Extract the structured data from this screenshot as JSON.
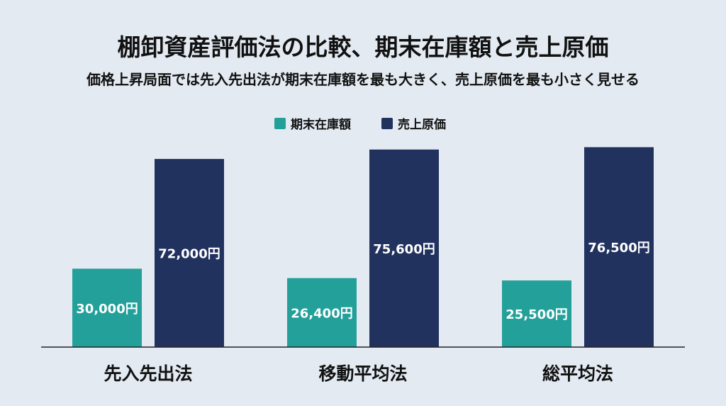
{
  "chart_data": {
    "type": "bar",
    "title": "棚卸資産評価法の比較、期末在庫額と売上原価",
    "subtitle": "価格上昇局面では先入先出法が期末在庫額を最も大きく、売上原価を最も小さく見せる",
    "categories": [
      "先入先出法",
      "移動平均法",
      "総平均法"
    ],
    "series": [
      {
        "name": "期末在庫額",
        "values": [
          30000,
          26400,
          25500
        ],
        "labels": [
          "30,000円",
          "26,400円",
          "25,500円"
        ],
        "color": "#24a09a"
      },
      {
        "name": "売上原価",
        "values": [
          72000,
          75600,
          76500
        ],
        "labels": [
          "72,000円",
          "75,600円",
          "76,500円"
        ],
        "color": "#22325f"
      }
    ],
    "legend_position": "top-center",
    "grid": false,
    "ylim": [
      0,
      78500
    ],
    "colors": {
      "background": "#e3eaf2",
      "text": "#111111",
      "axis": "#222222",
      "label_on_bar": "#ffffff"
    }
  }
}
